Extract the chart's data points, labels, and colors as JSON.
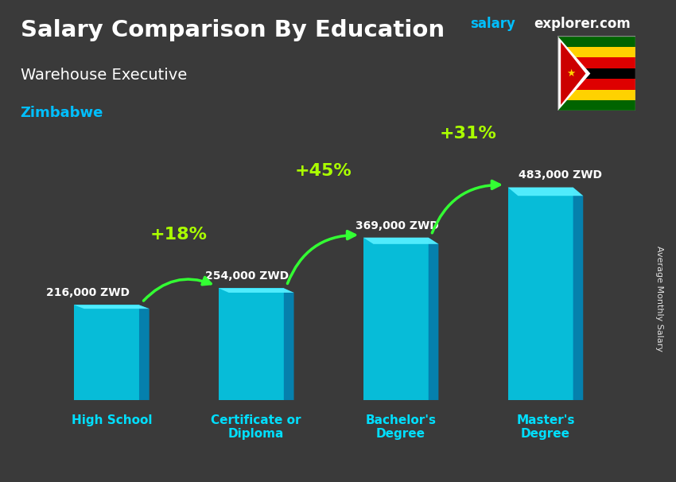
{
  "title": "Salary Comparison By Education",
  "subtitle": "Warehouse Executive",
  "country": "Zimbabwe",
  "ylabel": "Average Monthly Salary",
  "categories": [
    "High School",
    "Certificate or\nDiploma",
    "Bachelor's\nDegree",
    "Master's\nDegree"
  ],
  "values": [
    216000,
    254000,
    369000,
    483000
  ],
  "pct_changes": [
    "+18%",
    "+45%",
    "+31%"
  ],
  "value_labels": [
    "216,000 ZWD",
    "254,000 ZWD",
    "369,000 ZWD",
    "483,000 ZWD"
  ],
  "bar_color_face": "#00CFEF",
  "bar_color_dark": "#0088BB",
  "bar_color_top": "#55EEFF",
  "bg_color": "#3a3a3a",
  "title_color": "#FFFFFF",
  "subtitle_color": "#FFFFFF",
  "country_color": "#00BFFF",
  "cat_label_color": "#00DFFF",
  "pct_color": "#AAFF00",
  "value_label_color": "#FFFFFF",
  "arrow_color": "#33FF33",
  "site_text": "salary",
  "site_text2": "explorer.com",
  "site_color1": "#00BFFF",
  "site_color2": "#FFFFFF",
  "ylim": [
    0,
    580000
  ],
  "figsize": [
    8.5,
    6.06
  ],
  "dpi": 100
}
